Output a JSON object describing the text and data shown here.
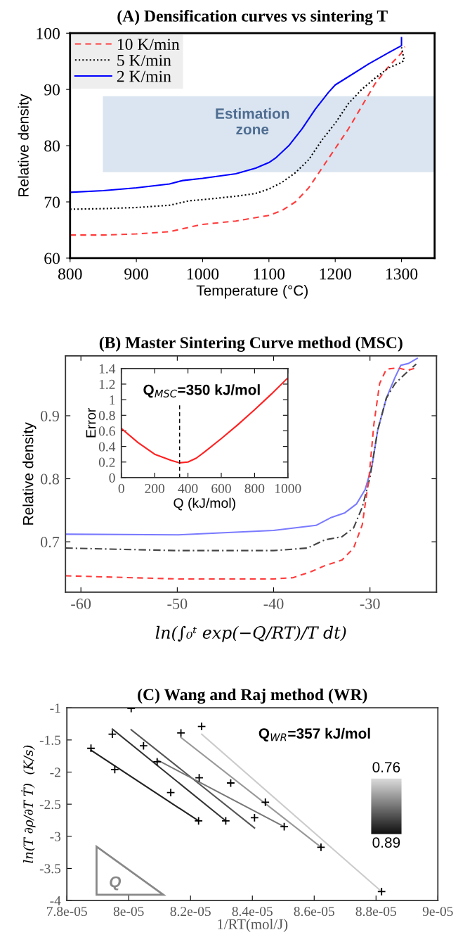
{
  "chart_data": [
    {
      "type": "line",
      "title": "(A) Densification curves vs sintering T",
      "xlabel": "Temperature (°C)",
      "ylabel": "Relative density",
      "xlim": [
        800,
        1350
      ],
      "ylim": [
        60,
        100
      ],
      "xticks": [
        800,
        900,
        1000,
        1100,
        1200,
        1300
      ],
      "yticks": [
        60,
        70,
        80,
        90,
        100
      ],
      "legend": "top left",
      "grid": false,
      "bands": [
        {
          "axis": "y",
          "from": 75.3,
          "to": 88.8,
          "label": "Estimation\nzone",
          "color": "#dae5f1"
        }
      ],
      "series": [
        {
          "name": "10 K/min",
          "color": "#ff3b3b",
          "line_style": "dashed",
          "x": [
            800,
            850,
            900,
            950,
            980,
            1000,
            1050,
            1100,
            1120,
            1140,
            1160,
            1180,
            1200,
            1220,
            1240,
            1260,
            1280,
            1300,
            1305
          ],
          "values": [
            64.1,
            64.1,
            64.3,
            64.7,
            65.5,
            66.0,
            66.6,
            67.6,
            68.5,
            70.0,
            72.5,
            76.0,
            79.5,
            83.0,
            87.0,
            91.0,
            94.0,
            96.5,
            97.6
          ]
        },
        {
          "name": "5 K/min",
          "color": "#000000",
          "line_style": "dotted",
          "x": [
            800,
            850,
            900,
            950,
            980,
            1000,
            1050,
            1080,
            1100,
            1120,
            1140,
            1160,
            1180,
            1200,
            1220,
            1240,
            1260,
            1280,
            1300,
            1304,
            1300
          ],
          "values": [
            68.7,
            68.8,
            69.0,
            69.4,
            70.2,
            70.4,
            71.0,
            71.5,
            72.3,
            73.5,
            75.2,
            77.5,
            81.0,
            84.0,
            87.5,
            90.0,
            92.0,
            93.8,
            94.8,
            95.2,
            97.5
          ]
        },
        {
          "name": "2 K/min",
          "color": "#0000ff",
          "line_style": "solid",
          "x": [
            800,
            850,
            900,
            950,
            970,
            1000,
            1050,
            1080,
            1100,
            1110,
            1130,
            1150,
            1170,
            1190,
            1200,
            1250,
            1280,
            1300,
            1300
          ],
          "values": [
            71.7,
            72.0,
            72.5,
            73.2,
            73.8,
            74.2,
            75.0,
            76.0,
            77.0,
            77.8,
            80.0,
            83.0,
            86.5,
            89.5,
            90.8,
            94.5,
            96.5,
            97.8,
            99.2
          ]
        }
      ]
    },
    {
      "type": "line",
      "title": "(B) Master Sintering Curve method (MSC)",
      "xlabel": "ln(∫₀ᵗ exp(−Q/RT)/T dt)",
      "ylabel": "Relative density",
      "xlim": [
        -61.6,
        -23.1
      ],
      "ylim": [
        0.62,
        0.995
      ],
      "xticks": [
        -60,
        -50,
        -40,
        -30
      ],
      "yticks": [
        0.7,
        0.8,
        0.9
      ],
      "grid": false,
      "series": [
        {
          "color": "#7a7aff",
          "line_style": "solid",
          "x": [
            -61.6,
            -50,
            -40,
            -35.6,
            -34.1,
            -32.6,
            -31.4,
            -30.5,
            -29.8,
            -29.2,
            -28.3,
            -27.4,
            -26.8,
            -26.0,
            -25.1
          ],
          "values": [
            0.712,
            0.711,
            0.718,
            0.726,
            0.738,
            0.746,
            0.76,
            0.783,
            0.82,
            0.877,
            0.928,
            0.961,
            0.98,
            0.983,
            0.991
          ]
        },
        {
          "color": "#444444",
          "line_style": "dashdot",
          "x": [
            -61.6,
            -50,
            -40,
            -36.5,
            -34.7,
            -32.9,
            -31.7,
            -30.8,
            -30.0,
            -29.2,
            -28.3,
            -27.4,
            -26.1,
            -25.2
          ],
          "values": [
            0.69,
            0.686,
            0.686,
            0.69,
            0.703,
            0.708,
            0.722,
            0.755,
            0.802,
            0.877,
            0.928,
            0.951,
            0.97,
            0.982
          ]
        },
        {
          "color": "#ff3b3b",
          "line_style": "dashed",
          "x": [
            -61.6,
            -50,
            -40,
            -38.0,
            -36.2,
            -34.7,
            -32.9,
            -31.7,
            -30.8,
            -30.1,
            -29.6,
            -29.0,
            -28.3,
            -27.1,
            -26.1,
            -25.2
          ],
          "values": [
            0.646,
            0.641,
            0.641,
            0.643,
            0.652,
            0.662,
            0.671,
            0.69,
            0.727,
            0.802,
            0.886,
            0.951,
            0.974,
            0.976,
            0.972,
            0.976
          ]
        }
      ]
    },
    {
      "type": "line",
      "xlabel": "Q (kJ/mol)",
      "ylabel": "Error",
      "xlim": [
        0,
        1000
      ],
      "ylim": [
        0,
        1.4
      ],
      "xticks": [
        0,
        200,
        400,
        600,
        800,
        1000
      ],
      "yticks": [
        0,
        0.2,
        0.4,
        0.6,
        0.8,
        1,
        1.2,
        1.4
      ],
      "grid": false,
      "ref_lines": [
        {
          "axis": "x",
          "value": 350,
          "label": "Q$_{MSC}$=350 kJ/mol",
          "color": "#000000",
          "line_style": "dashed"
        }
      ],
      "series": [
        {
          "color": "#ff2020",
          "line_style": "solid",
          "x": [
            0,
            100,
            200,
            300,
            350,
            400,
            450,
            500,
            600,
            700,
            800,
            900,
            1000
          ],
          "values": [
            0.63,
            0.45,
            0.3,
            0.22,
            0.19,
            0.2,
            0.25,
            0.33,
            0.5,
            0.68,
            0.87,
            1.07,
            1.28
          ]
        }
      ]
    },
    {
      "type": "line",
      "title": "(C) Wang and Raj method (WR)",
      "xlabel": "1/RT(mol/J)",
      "ylabel": "ln(T ∂ρ/∂T Ṫ)  (K/s)",
      "xlim": [
        7.8e-05,
        9e-05
      ],
      "ylim": [
        -4,
        -1
      ],
      "xticks": [
        {
          "value": 7.8e-05,
          "label": "7.8e-05"
        },
        {
          "value": 8e-05,
          "label": "8e-05"
        },
        {
          "value": 8.2e-05,
          "label": "8.2e-05"
        },
        {
          "value": 8.4e-05,
          "label": "8.4e-05"
        },
        {
          "value": 8.6e-05,
          "label": "8.6e-05"
        },
        {
          "value": 8.8e-05,
          "label": "8.8e-05"
        },
        {
          "value": 9e-05,
          "label": "9e-05"
        }
      ],
      "yticks": [
        -1,
        -1.5,
        -2,
        -2.5,
        -3,
        -3.5,
        -4
      ],
      "grid": false,
      "annotations": [
        "Q$_{WR}$=357 kJ/mol",
        "Q",
        "0.76",
        "0.89"
      ],
      "series": [
        {
          "type": "line",
          "color": "#222222",
          "x": [
            7.878e-05,
            8.226e-05
          ],
          "values": [
            -1.66,
            -2.76
          ]
        },
        {
          "type": "line",
          "color": "#333333",
          "x": [
            7.947e-05,
            8.314e-05
          ],
          "values": [
            -1.33,
            -2.76
          ]
        },
        {
          "type": "line",
          "color": "#555555",
          "x": [
            8.008e-05,
            8.407e-05
          ],
          "values": [
            -1.34,
            -2.87
          ]
        },
        {
          "type": "line",
          "color": "#777777",
          "x": [
            8.092e-05,
            8.503e-05
          ],
          "values": [
            -1.81,
            -2.85
          ]
        },
        {
          "type": "line",
          "color": "#999999",
          "x": [
            8.169e-05,
            8.622e-05
          ],
          "values": [
            -1.46,
            -3.17
          ]
        },
        {
          "type": "line",
          "color": "#cccccc",
          "x": [
            8.236e-05,
            8.818e-05
          ],
          "values": [
            -1.41,
            -3.86
          ]
        },
        {
          "type": "scatter",
          "color": "#000000",
          "marker": "cross",
          "x": [
            7.878e-05,
            7.947e-05,
            7.955e-05,
            8.008e-05,
            8.048e-05,
            8.092e-05,
            8.136e-05,
            8.169e-05,
            8.228e-05,
            8.226e-05,
            8.236e-05,
            8.314e-05,
            8.33e-05,
            8.407e-05,
            8.442e-05,
            8.503e-05,
            8.622e-05,
            8.818e-05
          ],
          "values": [
            -1.63,
            -1.41,
            -1.96,
            -1.01,
            -1.59,
            -1.84,
            -2.32,
            -1.39,
            -2.09,
            -2.76,
            -1.29,
            -2.76,
            -2.17,
            -2.71,
            -2.47,
            -2.85,
            -3.17,
            -3.86
          ]
        }
      ]
    }
  ]
}
